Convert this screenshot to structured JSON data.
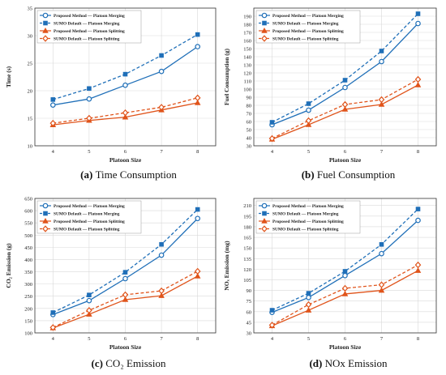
{
  "colors": {
    "blue": "#1f6fb8",
    "orange": "#e0541b",
    "axis": "#333333",
    "grid": "#d9d9d9"
  },
  "legend_entries": [
    "Proposed Method — Platoon Merging",
    "SUMO Default — Platoon Merging",
    "Proposed Method — Platoon Splitting",
    "SUMO Default — Platoon Splitting"
  ],
  "chart_data": [
    {
      "type": "line",
      "caption_letter": "(a)",
      "caption_text": "Time Consumption",
      "xlabel": "Platoon Size",
      "ylabel": "Time (s)",
      "x": [
        4,
        5,
        6,
        7,
        8
      ],
      "xlim": [
        3.5,
        8.5
      ],
      "ylim": [
        10,
        35
      ],
      "yticks": [
        10,
        15,
        20,
        25,
        30,
        35
      ],
      "grid": true,
      "legend_position": "top-left",
      "series": [
        {
          "name": "Proposed Method — Platoon Merging",
          "values": [
            17.4,
            18.5,
            21.0,
            23.5,
            28.0
          ],
          "color": "blue",
          "dash": false,
          "marker": "circle"
        },
        {
          "name": "SUMO Default — Platoon Merging",
          "values": [
            18.4,
            20.4,
            23.0,
            26.4,
            30.2
          ],
          "color": "blue",
          "dash": true,
          "marker": "square"
        },
        {
          "name": "Proposed Method — Platoon Splitting",
          "values": [
            13.8,
            14.6,
            15.2,
            16.5,
            17.8
          ],
          "color": "orange",
          "dash": false,
          "marker": "triangle"
        },
        {
          "name": "SUMO Default — Platoon Splitting",
          "values": [
            14.1,
            15.0,
            16.0,
            17.0,
            18.7
          ],
          "color": "orange",
          "dash": true,
          "marker": "diamond"
        }
      ]
    },
    {
      "type": "line",
      "caption_letter": "(b)",
      "caption_text": "Fuel Consumption",
      "xlabel": "Platoon Size",
      "ylabel": "Fuel Consumption (g)",
      "x": [
        4,
        5,
        6,
        7,
        8
      ],
      "xlim": [
        3.5,
        8.5
      ],
      "ylim": [
        30,
        200
      ],
      "yticks": [
        30,
        40,
        50,
        60,
        70,
        80,
        90,
        100,
        110,
        120,
        130,
        140,
        150,
        160,
        170,
        180,
        190
      ],
      "grid": true,
      "legend_position": "top-left",
      "series": [
        {
          "name": "Proposed Method — Platoon Merging",
          "values": [
            56,
            74,
            102,
            134,
            181
          ],
          "color": "blue",
          "dash": false,
          "marker": "circle"
        },
        {
          "name": "SUMO Default — Platoon Merging",
          "values": [
            59,
            82,
            111,
            147,
            193
          ],
          "color": "blue",
          "dash": true,
          "marker": "square"
        },
        {
          "name": "Proposed Method — Platoon Splitting",
          "values": [
            38,
            56,
            75,
            81,
            105
          ],
          "color": "orange",
          "dash": false,
          "marker": "triangle"
        },
        {
          "name": "SUMO Default — Platoon Splitting",
          "values": [
            39,
            61,
            81,
            87,
            112
          ],
          "color": "orange",
          "dash": true,
          "marker": "diamond"
        }
      ]
    },
    {
      "type": "line",
      "caption_letter": "(c)",
      "caption_text": "CO₂ Emission",
      "xlabel": "Platoon Size",
      "ylabel": "CO₂ Emission (g)",
      "x": [
        4,
        5,
        6,
        7,
        8
      ],
      "xlim": [
        3.5,
        8.5
      ],
      "ylim": [
        100,
        650
      ],
      "yticks": [
        100,
        150,
        200,
        250,
        300,
        350,
        400,
        450,
        500,
        550,
        600,
        650
      ],
      "grid": true,
      "legend_position": "top-left",
      "series": [
        {
          "name": "Proposed Method — Platoon Merging",
          "values": [
            175,
            232,
            322,
            418,
            568
          ],
          "color": "blue",
          "dash": false,
          "marker": "circle"
        },
        {
          "name": "SUMO Default — Platoon Merging",
          "values": [
            183,
            255,
            348,
            462,
            605
          ],
          "color": "blue",
          "dash": true,
          "marker": "square"
        },
        {
          "name": "Proposed Method — Platoon Splitting",
          "values": [
            120,
            176,
            236,
            252,
            332
          ],
          "color": "orange",
          "dash": false,
          "marker": "triangle"
        },
        {
          "name": "SUMO Default — Platoon Splitting",
          "values": [
            122,
            192,
            256,
            272,
            352
          ],
          "color": "orange",
          "dash": true,
          "marker": "diamond"
        }
      ]
    },
    {
      "type": "line",
      "caption_letter": "(d)",
      "caption_text": "NOx Emission",
      "xlabel": "Platoon Size",
      "ylabel": "NOₓ Emission (mg)",
      "x": [
        4,
        5,
        6,
        7,
        8
      ],
      "xlim": [
        3.5,
        8.5
      ],
      "ylim": [
        30,
        220
      ],
      "yticks": [
        30,
        45,
        60,
        75,
        90,
        105,
        120,
        135,
        150,
        165,
        180,
        195,
        210
      ],
      "grid": true,
      "legend_position": "top-left",
      "series": [
        {
          "name": "Proposed Method — Platoon Merging",
          "values": [
            59,
            80,
            111,
            142,
            189
          ],
          "color": "blue",
          "dash": false,
          "marker": "circle"
        },
        {
          "name": "SUMO Default — Platoon Merging",
          "values": [
            62,
            86,
            117,
            155,
            205
          ],
          "color": "blue",
          "dash": true,
          "marker": "square"
        },
        {
          "name": "Proposed Method — Platoon Splitting",
          "values": [
            40,
            62,
            85,
            90,
            118
          ],
          "color": "orange",
          "dash": false,
          "marker": "triangle"
        },
        {
          "name": "SUMO Default — Platoon Splitting",
          "values": [
            41,
            70,
            93,
            98,
            126
          ],
          "color": "orange",
          "dash": true,
          "marker": "diamond"
        }
      ]
    }
  ]
}
